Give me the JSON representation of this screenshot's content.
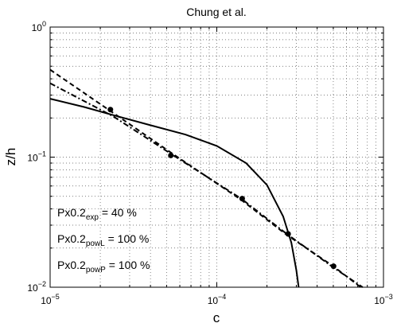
{
  "chart_data": {
    "type": "line",
    "title": "Chung et al.",
    "xlabel": "c",
    "ylabel": "z/h",
    "xscale": "log",
    "yscale": "log",
    "xlim": [
      1e-05,
      0.001
    ],
    "ylim": [
      0.01,
      1
    ],
    "grid": true,
    "x_ticks": [
      {
        "value": 1e-05,
        "base": "10",
        "exp": "−5"
      },
      {
        "value": 0.0001,
        "base": "10",
        "exp": "−4"
      },
      {
        "value": 0.001,
        "base": "10",
        "exp": "−3"
      }
    ],
    "y_ticks": [
      {
        "value": 0.01,
        "base": "10",
        "exp": "−2"
      },
      {
        "value": 0.1,
        "base": "10",
        "exp": "−1"
      },
      {
        "value": 1,
        "base": "10",
        "exp": "0"
      }
    ],
    "series": [
      {
        "style": "solid",
        "x": [
          1e-05,
          1.6e-05,
          2.4e-05,
          4e-05,
          6.5e-05,
          0.0001,
          0.00015,
          0.0002,
          0.00025,
          0.00028,
          0.0003,
          0.00031
        ],
        "y": [
          0.281,
          0.243,
          0.21,
          0.176,
          0.149,
          0.122,
          0.09,
          0.061,
          0.035,
          0.022,
          0.0135,
          0.01
        ]
      },
      {
        "style": "dashed",
        "x": [
          1e-05,
          2.4e-05,
          5.5e-05,
          0.00014,
          0.00026,
          0.0005,
          0.00073
        ],
        "y": [
          0.47,
          0.218,
          0.105,
          0.047,
          0.0255,
          0.0145,
          0.01
        ]
      },
      {
        "style": "dashdot",
        "x": [
          1e-05,
          2.4e-05,
          5.5e-05,
          0.00014,
          0.00026,
          0.0005,
          0.00075
        ],
        "y": [
          0.37,
          0.205,
          0.103,
          0.048,
          0.026,
          0.0142,
          0.01
        ]
      }
    ],
    "points": {
      "x": [
        2.3e-05,
        5.3e-05,
        0.000142,
        0.000268,
        0.000502
      ],
      "y": [
        0.232,
        0.103,
        0.048,
        0.0257,
        0.0145
      ]
    },
    "annotations": [
      {
        "main": "Px0.2",
        "sub": "exp",
        "rest": " = 40 %"
      },
      {
        "main": "Px0.2",
        "sub": "powL",
        "rest": " = 100 %"
      },
      {
        "main": "Px0.2",
        "sub": "powP",
        "rest": " = 100 %"
      }
    ]
  }
}
